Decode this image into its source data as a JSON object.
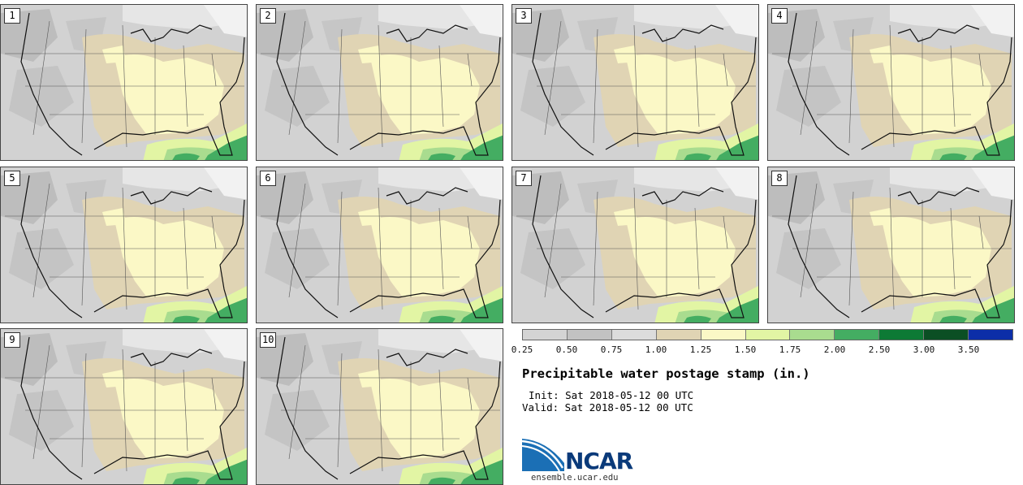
{
  "stamps": [
    {
      "label": "1"
    },
    {
      "label": "2"
    },
    {
      "label": "3"
    },
    {
      "label": "4"
    },
    {
      "label": "5"
    },
    {
      "label": "6"
    },
    {
      "label": "7"
    },
    {
      "label": "8"
    },
    {
      "label": "9"
    },
    {
      "label": "10"
    }
  ],
  "legend": {
    "title": "Precipitable water postage stamp (in.)",
    "init": "Init: Sat 2018-05-12 00 UTC",
    "valid": "Valid: Sat 2018-05-12 00 UTC",
    "ticks": [
      "0.25",
      "0.50",
      "0.75",
      "1.00",
      "1.25",
      "1.50",
      "1.75",
      "2.00",
      "2.50",
      "3.00",
      "3.50"
    ],
    "colors": [
      "#d4d4d4",
      "#c2c2c2",
      "#dcdcdc",
      "#e0d4b4",
      "#fbf8c6",
      "#e2f5a4",
      "#a9dc8f",
      "#44ad62",
      "#0d7a35",
      "#0b4f24",
      "#0c2ea8"
    ]
  },
  "branding": {
    "logo_text": "NCAR",
    "url": "ensemble.ucar.edu"
  }
}
